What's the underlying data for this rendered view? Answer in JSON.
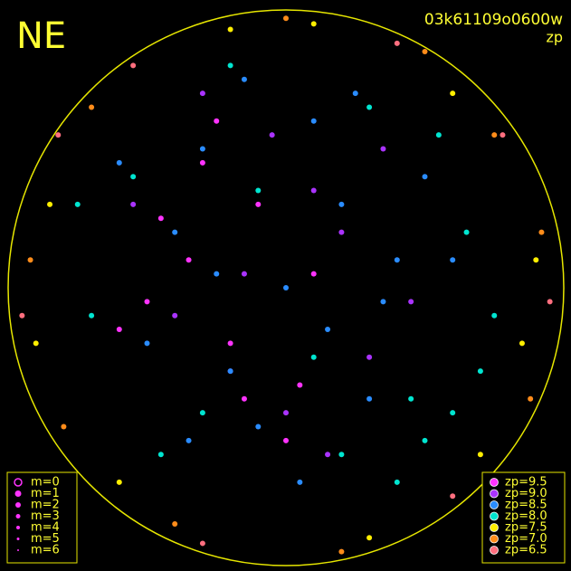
{
  "chart_data": {
    "type": "scatter",
    "title": "NE",
    "subtitle": "03k61109o0600w",
    "color_label": "zp",
    "xlim": [
      -1,
      1
    ],
    "ylim": [
      -1,
      1
    ],
    "size_legend": [
      "m=0",
      "m=1",
      "m=2",
      "m=3",
      "m=4",
      "m=5",
      "m=6"
    ],
    "series": [
      {
        "name": "zp=9.5",
        "color": "#ff33ff",
        "x": [
          -0.35,
          -0.2,
          -0.5,
          -0.1,
          -0.3,
          0.05,
          -0.45,
          -0.15,
          0.1,
          -0.25,
          -0.6,
          0.0
        ],
        "values": [
          0.1,
          -0.2,
          -0.05,
          0.3,
          0.45,
          -0.35,
          0.25,
          -0.4,
          0.05,
          0.6,
          -0.15,
          -0.55
        ]
      },
      {
        "name": "zp=9.0",
        "color": "#aa33ff",
        "x": [
          -0.4,
          0.2,
          -0.15,
          0.3,
          -0.55,
          0.0,
          0.35,
          -0.3,
          0.15,
          -0.05,
          0.45,
          -0.2,
          0.1
        ],
        "values": [
          -0.1,
          0.2,
          0.05,
          -0.25,
          0.3,
          -0.45,
          0.5,
          0.7,
          -0.6,
          0.55,
          -0.05,
          -0.3,
          0.35
        ]
      },
      {
        "name": "zp=8.5",
        "color": "#2a8cff",
        "x": [
          0.0,
          0.2,
          -0.2,
          0.4,
          -0.4,
          0.1,
          -0.1,
          0.3,
          -0.3,
          0.5,
          -0.5,
          0.15,
          -0.15,
          0.25,
          -0.25,
          0.05,
          0.35,
          -0.35,
          0.6,
          -0.6
        ],
        "values": [
          0.0,
          0.3,
          -0.3,
          0.1,
          0.2,
          0.6,
          -0.5,
          -0.4,
          0.5,
          0.4,
          -0.2,
          -0.15,
          0.75,
          0.7,
          0.05,
          -0.7,
          -0.05,
          -0.55,
          0.1,
          0.45
        ]
      },
      {
        "name": "zp=8.0",
        "color": "#00e5d0",
        "x": [
          0.5,
          0.6,
          0.45,
          0.7,
          -0.7,
          -0.55,
          0.2,
          -0.1,
          0.3,
          -0.3,
          0.65,
          0.55,
          -0.75,
          0.1,
          -0.45,
          0.4,
          0.75,
          -0.2
        ],
        "values": [
          -0.55,
          -0.45,
          -0.4,
          -0.3,
          -0.1,
          0.4,
          -0.6,
          0.35,
          0.65,
          -0.45,
          0.2,
          0.55,
          0.3,
          -0.25,
          -0.6,
          -0.7,
          -0.1,
          0.8
        ]
      },
      {
        "name": "zp=7.5",
        "color": "#ffee00",
        "x": [
          -0.85,
          0.85,
          0.6,
          -0.6,
          0.3,
          -0.2,
          0.9,
          -0.9,
          0.1,
          0.7
        ],
        "values": [
          0.3,
          -0.2,
          0.7,
          -0.7,
          -0.9,
          0.93,
          0.1,
          -0.2,
          0.95,
          -0.6
        ]
      },
      {
        "name": "zp=7.0",
        "color": "#ff8c1a",
        "x": [
          0.88,
          -0.7,
          0.5,
          -0.4,
          0.92,
          -0.92,
          0.2,
          0.75,
          -0.8,
          0.0
        ],
        "values": [
          -0.4,
          0.65,
          0.85,
          -0.85,
          0.2,
          0.1,
          -0.95,
          0.55,
          -0.5,
          0.97
        ]
      },
      {
        "name": "zp=6.5",
        "color": "#ff6f7f",
        "x": [
          -0.82,
          0.95,
          -0.95,
          0.6,
          -0.55,
          0.78,
          -0.3,
          0.4
        ],
        "values": [
          0.55,
          -0.05,
          -0.1,
          -0.75,
          0.8,
          0.55,
          -0.92,
          0.88
        ]
      }
    ]
  }
}
